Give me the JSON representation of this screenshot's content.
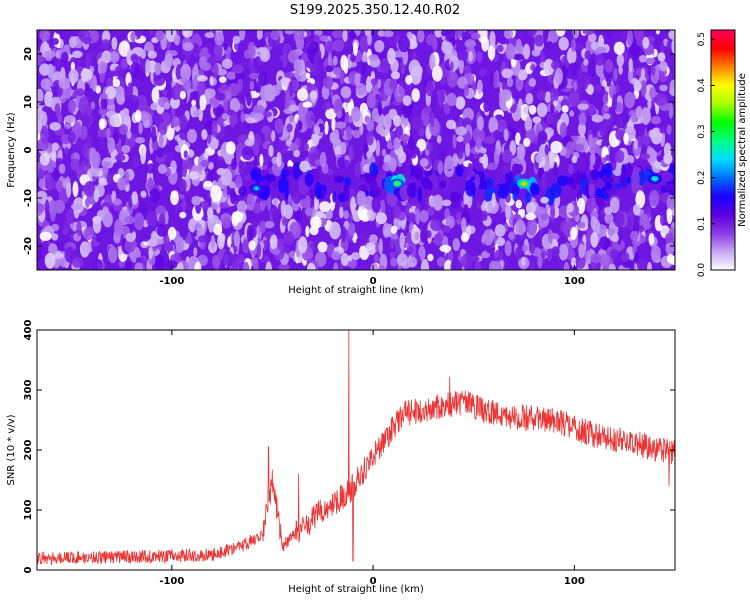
{
  "title": "S199.2025.350.12.40.R02",
  "chart_data": [
    {
      "type": "heatmap",
      "xlabel": "Height of straight line (km)",
      "ylabel": "Frequency (Hz)",
      "xlim": [
        -167,
        150
      ],
      "ylim": [
        -25,
        25
      ],
      "x_ticks": [
        -100,
        0,
        100
      ],
      "y_ticks": [
        -20,
        -10,
        0,
        10,
        20
      ],
      "colorbar": {
        "label": "Normalized spectral amplitude",
        "range": [
          0.0,
          0.52
        ],
        "ticks": [
          0.0,
          0.1,
          0.2,
          0.3,
          0.4,
          0.5
        ],
        "tick_labels": [
          "0.0",
          "0.1",
          "0.2",
          "0.3",
          "0.4",
          "0.5"
        ],
        "colors": [
          "#ffffff",
          "#c6a6f2",
          "#8b39e4",
          "#5b00e0",
          "#1b00ff",
          "#0070ff",
          "#00ddff",
          "#00ff80",
          "#00ff00",
          "#a8ff00",
          "#ffff00",
          "#ff8000",
          "#ff0000",
          "#ff0060"
        ]
      },
      "signal_band": {
        "freq_hz": -7,
        "x_start_km": -65,
        "x_end_km": 150,
        "background_amplitude": 0.08,
        "band_amplitude": 0.16,
        "peaks": [
          {
            "x_km": -58,
            "freq_hz": -8,
            "amplitude": 0.24
          },
          {
            "x_km": 12,
            "freq_hz": -7,
            "amplitude": 0.34
          },
          {
            "x_km": 75,
            "freq_hz": -7,
            "amplitude": 0.42
          },
          {
            "x_km": 140,
            "freq_hz": -6,
            "amplitude": 0.28
          }
        ]
      }
    },
    {
      "type": "line",
      "xlabel": "Height of straight line (km)",
      "ylabel": "SNR (10 * v/v)",
      "xlim": [
        -167,
        150
      ],
      "ylim": [
        0,
        400
      ],
      "x_ticks": [
        -100,
        0,
        100
      ],
      "y_ticks": [
        0,
        100,
        200,
        300,
        400
      ],
      "color": "#ee3333",
      "trend": {
        "x": [
          -167,
          -120,
          -80,
          -65,
          -55,
          -50,
          -45,
          -35,
          -25,
          -12,
          0,
          15,
          30,
          45,
          55,
          70,
          90,
          110,
          125,
          150
        ],
        "y": [
          20,
          22,
          25,
          40,
          60,
          150,
          40,
          70,
          100,
          130,
          190,
          260,
          270,
          280,
          265,
          255,
          250,
          225,
          215,
          195
        ]
      },
      "spikes": [
        {
          "x": -52,
          "y": 205
        },
        {
          "x": -37,
          "y": 160
        },
        {
          "x": -12,
          "y": 400
        },
        {
          "x": -10,
          "y": 15
        },
        {
          "x": 38,
          "y": 322
        },
        {
          "x": 147,
          "y": 140
        }
      ],
      "noise_amplitude": 22
    }
  ]
}
